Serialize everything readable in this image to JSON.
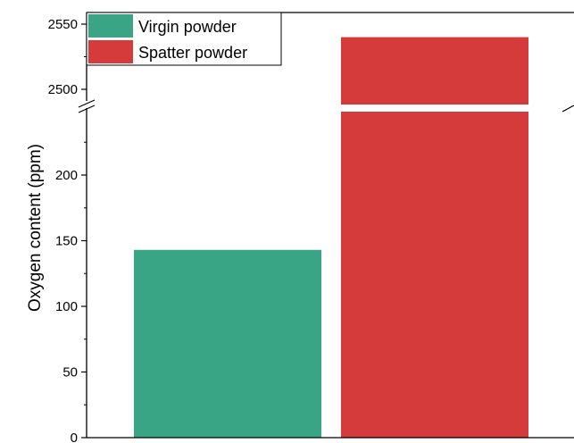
{
  "chart_data": {
    "type": "bar",
    "title": "",
    "xlabel": "",
    "ylabel": "Oxygen content (ppm)",
    "axis_break": {
      "lower_range": [
        0,
        240
      ],
      "upper_range": [
        2490,
        2560
      ]
    },
    "series": [
      {
        "name": "Virgin powder",
        "value": 143,
        "color": "#3aa585"
      },
      {
        "name": "Spatter powder",
        "value": 2540,
        "color": "#d63b3b"
      }
    ],
    "lower_ticks": [
      "0",
      "50",
      "100",
      "150",
      "200"
    ],
    "lower_tick_values": [
      0,
      50,
      100,
      150,
      200
    ],
    "upper_ticks": [
      "2500",
      "2550"
    ],
    "upper_tick_values": [
      2500,
      2550
    ],
    "legend_position": "top-left",
    "grid": false
  }
}
